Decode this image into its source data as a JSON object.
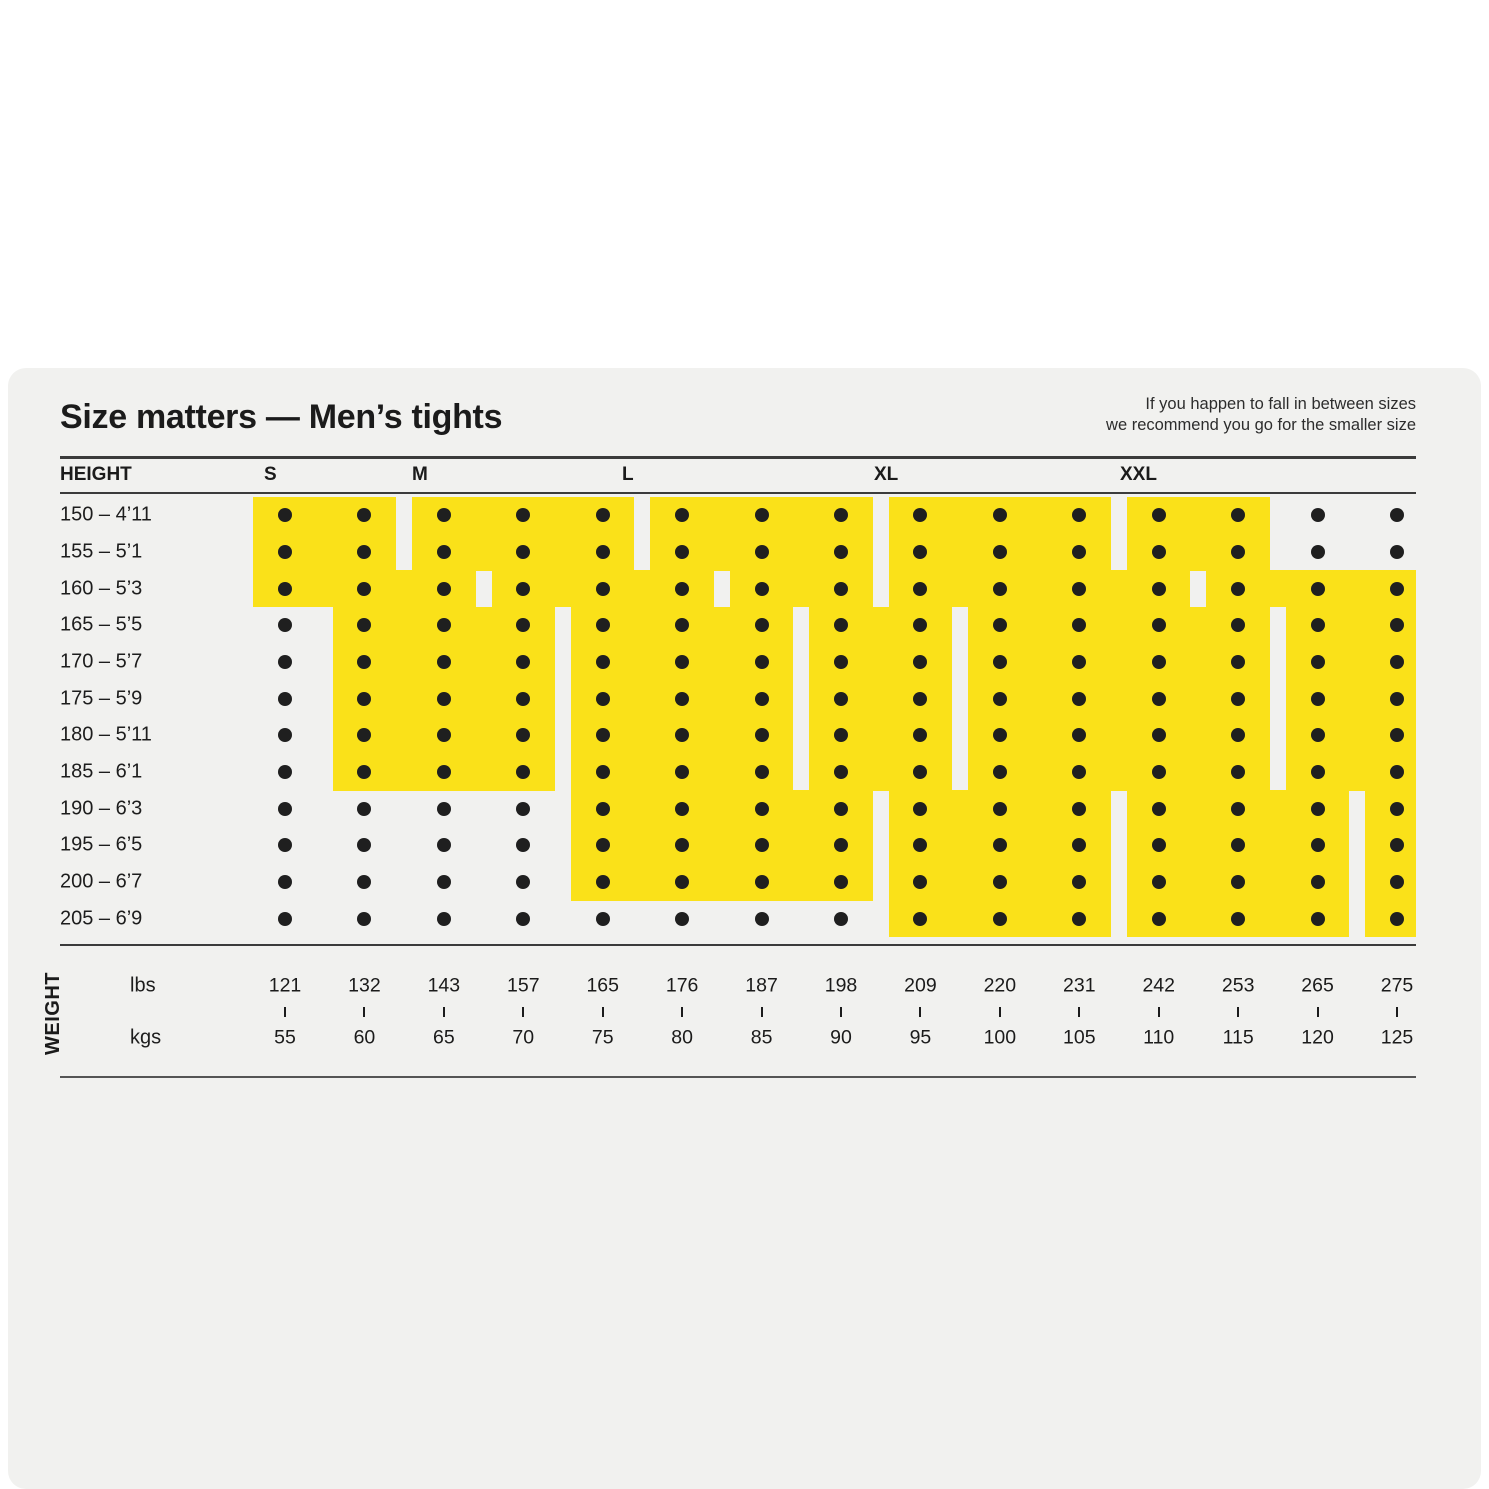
{
  "panel": {
    "title": "Size matters — Men’s tights",
    "note_line1": "If you happen to fall in between sizes",
    "note_line2": "we recommend you go for the smaller size"
  },
  "table": {
    "row_header": "HEIGHT",
    "col_header": "WEIGHT",
    "unit_lbs": "lbs",
    "unit_kgs": "kgs",
    "size_labels": [
      "S",
      "M",
      "L",
      "XL",
      "XXL"
    ],
    "height_rows": [
      "150 – 4’11",
      "155 – 5’1",
      "160 – 5’3",
      "165 – 5’5",
      "170 – 5’7",
      "175 – 5’9",
      "180 – 5’11",
      "185 – 6’1",
      "190 – 6’3",
      "195 – 6’5",
      "200 – 6’7",
      "205 – 6’9"
    ],
    "weights_lbs": [
      "121",
      "132",
      "143",
      "157",
      "165",
      "176",
      "187",
      "198",
      "209",
      "220",
      "231",
      "242",
      "253",
      "265",
      "275"
    ],
    "weights_kgs": [
      "55",
      "60",
      "65",
      "70",
      "75",
      "80",
      "85",
      "90",
      "95",
      "100",
      "105",
      "110",
      "115",
      "120",
      "125"
    ]
  },
  "colors": {
    "accent_yellow": "#fae119",
    "panel_bg": "#f1f1ef",
    "dot": "#1f1f1f",
    "text": "#1d1d1d",
    "rule": "#3b3b3b"
  },
  "chart_data": {
    "type": "heatmap",
    "title": "Size matters — Men’s tights",
    "note": "If you happen to fall in between sizes we recommend you go for the smaller size",
    "x_axis": {
      "label": "WEIGHT",
      "lbs": [
        121,
        132,
        143,
        157,
        165,
        176,
        187,
        198,
        209,
        220,
        231,
        242,
        253,
        265,
        275
      ],
      "kgs": [
        55,
        60,
        65,
        70,
        75,
        80,
        85,
        90,
        95,
        100,
        105,
        110,
        115,
        120,
        125
      ]
    },
    "y_axis": {
      "label": "HEIGHT",
      "heights_cm": [
        150,
        155,
        160,
        165,
        170,
        175,
        180,
        185,
        190,
        195,
        200,
        205
      ],
      "heights_ft": [
        "4’11",
        "5’1",
        "5’3",
        "5’5",
        "5’7",
        "5’9",
        "5’11",
        "6’1",
        "6’3",
        "6’5",
        "6’7",
        "6’9"
      ]
    },
    "legend_position": "top",
    "series": [
      {
        "name": "S",
        "col_span_by_row": [
          [
            1,
            2
          ],
          [
            1,
            2
          ],
          [
            1,
            3
          ],
          [
            2,
            4
          ],
          [
            2,
            4
          ],
          [
            2,
            4
          ],
          [
            2,
            4
          ],
          [
            2,
            4
          ],
          null,
          null,
          null,
          null
        ],
        "kg_range_by_row": [
          "55–60",
          "55–60",
          "55–65",
          "60–70",
          "60–70",
          "60–70",
          "60–70",
          "60–70",
          null,
          null,
          null,
          null
        ]
      },
      {
        "name": "M",
        "col_span_by_row": [
          [
            3,
            5
          ],
          [
            3,
            5
          ],
          [
            4,
            6
          ],
          [
            5,
            7
          ],
          [
            5,
            7
          ],
          [
            5,
            7
          ],
          [
            5,
            7
          ],
          [
            5,
            7
          ],
          [
            5,
            8
          ],
          [
            5,
            8
          ],
          [
            5,
            8
          ],
          null
        ],
        "kg_range_by_row": [
          "65–75",
          "65–75",
          "70–80",
          "75–85",
          "75–85",
          "75–85",
          "75–85",
          "75–85",
          "75–90",
          "75–90",
          "75–90",
          null
        ]
      },
      {
        "name": "L",
        "col_span_by_row": [
          [
            6,
            8
          ],
          [
            6,
            8
          ],
          [
            7,
            8
          ],
          [
            8,
            9
          ],
          [
            8,
            9
          ],
          [
            8,
            9
          ],
          [
            8,
            9
          ],
          [
            8,
            9
          ],
          [
            9,
            11
          ],
          [
            9,
            11
          ],
          [
            9,
            11
          ],
          [
            9,
            11
          ]
        ],
        "kg_range_by_row": [
          "80–90",
          "80–90",
          "85–90",
          "90–95",
          "90–95",
          "90–95",
          "90–95",
          "90–95",
          "95–105",
          "95–105",
          "95–105",
          "95–105"
        ]
      },
      {
        "name": "XL",
        "col_span_by_row": [
          [
            9,
            11
          ],
          [
            9,
            11
          ],
          [
            9,
            12
          ],
          [
            10,
            13
          ],
          [
            10,
            13
          ],
          [
            10,
            13
          ],
          [
            10,
            13
          ],
          [
            10,
            13
          ],
          [
            12,
            14
          ],
          [
            12,
            14
          ],
          [
            12,
            14
          ],
          [
            12,
            14
          ]
        ],
        "kg_range_by_row": [
          "95–105",
          "95–105",
          "95–110",
          "100–115",
          "100–115",
          "100–115",
          "100–115",
          "100–115",
          "110–120",
          "110–120",
          "110–120",
          "110–120"
        ]
      },
      {
        "name": "XXL",
        "col_span_by_row": [
          [
            12,
            13
          ],
          [
            12,
            13
          ],
          [
            13,
            15
          ],
          [
            14,
            15
          ],
          [
            14,
            15
          ],
          [
            14,
            15
          ],
          [
            14,
            15
          ],
          [
            14,
            15
          ],
          [
            15,
            15
          ],
          [
            15,
            15
          ],
          [
            15,
            15
          ],
          [
            15,
            15
          ]
        ],
        "kg_range_by_row": [
          "110–115",
          "110–115",
          "115–125",
          "120–125",
          "120–125",
          "120–125",
          "120–125",
          "120–125",
          "125",
          "125",
          "125",
          "125"
        ]
      }
    ]
  }
}
